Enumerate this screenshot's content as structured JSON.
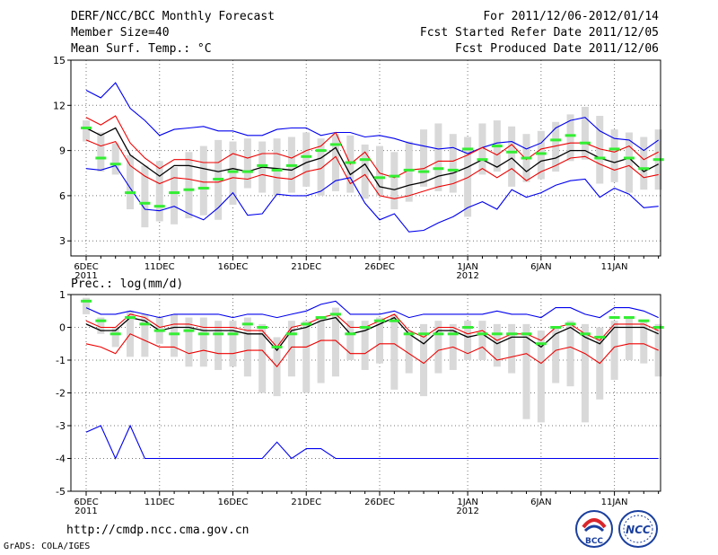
{
  "header": {
    "title": "DERF/NCC/BCC Monthly Forecast",
    "member_size": "Member Size=40",
    "variable": "Mean Surf. Temp.: °C",
    "period": "For 2011/12/06-2012/01/14",
    "started": "Fcst Started Refer Date 2011/12/05",
    "produced": "Fcst Produced Date 2011/12/06"
  },
  "footer": {
    "url": "http://cmdp.ncc.cma.gov.cn",
    "grads": "GrADS: COLA/IGES"
  },
  "logos": [
    {
      "name": "bcc-logo",
      "label": "BCC"
    },
    {
      "name": "ncc-logo",
      "label": "NCC"
    }
  ],
  "colors": {
    "envelope": "#0000ee",
    "spread": "#ee0000",
    "mean": "#000000",
    "member": "#33ee33",
    "box": "#d9d9d9",
    "grid": "#777777"
  },
  "chart_data": [
    {
      "type": "line",
      "title": "Mean Surf. Temp.: °C",
      "x_tick_labels": [
        "6DEC\n2011",
        "11DEC",
        "16DEC",
        "21DEC",
        "26DEC",
        "1JAN\n2012",
        "6JAN",
        "11JAN"
      ],
      "x_tick_days": [
        1,
        6,
        11,
        16,
        21,
        27,
        32,
        37
      ],
      "x": [
        1,
        2,
        3,
        4,
        5,
        6,
        7,
        8,
        9,
        10,
        11,
        12,
        13,
        14,
        15,
        16,
        17,
        18,
        19,
        20,
        21,
        22,
        23,
        24,
        25,
        26,
        27,
        28,
        29,
        30,
        31,
        32,
        33,
        34,
        35,
        36,
        37,
        38,
        39,
        40
      ],
      "ylim": [
        2,
        15
      ],
      "yticks": [
        3,
        6,
        9,
        12,
        15
      ],
      "series": [
        {
          "name": "max",
          "values": [
            13,
            12.5,
            13.5,
            11.8,
            11,
            10,
            10.4,
            10.5,
            10.6,
            10.3,
            10.3,
            10,
            10,
            10.4,
            10.5,
            10.5,
            10,
            10.2,
            10.2,
            9.9,
            10,
            9.8,
            9.5,
            9.3,
            9.1,
            9.2,
            8.8,
            9.2,
            9.5,
            9.6,
            9.1,
            9.5,
            10.5,
            11,
            11.2,
            10.3,
            9.8,
            9.7,
            9,
            9.7
          ]
        },
        {
          "name": "upper",
          "values": [
            11.2,
            10.7,
            11.3,
            9.5,
            8.5,
            7.8,
            8.4,
            8.4,
            8.2,
            8.2,
            8.8,
            8.5,
            8.8,
            8.8,
            8.5,
            9,
            9.3,
            10.2,
            8.1,
            8.9,
            7.5,
            7.2,
            7.7,
            7.8,
            8.3,
            8.3,
            8.7,
            9.2,
            8.7,
            9.4,
            8.4,
            9.1,
            9.3,
            9.5,
            9.5,
            9.1,
            8.9,
            9.3,
            8.4,
            8.9
          ]
        },
        {
          "name": "mean",
          "values": [
            10.5,
            10,
            10.5,
            8.7,
            8,
            7.3,
            8,
            8,
            7.8,
            7.6,
            7.8,
            7.6,
            7.9,
            7.8,
            7.7,
            8.2,
            8.5,
            9.2,
            7.4,
            8.1,
            6.6,
            6.4,
            6.7,
            6.9,
            7.3,
            7.5,
            7.9,
            8.4,
            7.9,
            8.5,
            7.6,
            8.3,
            8.5,
            9,
            9,
            8.5,
            8.2,
            8.5,
            7.6,
            8.1
          ]
        },
        {
          "name": "lower",
          "values": [
            9.7,
            9.3,
            9.6,
            8,
            7.3,
            6.8,
            7.2,
            7.1,
            6.9,
            6.9,
            7.2,
            7.1,
            7.4,
            7.2,
            7.1,
            7.6,
            7.8,
            8.6,
            6.8,
            7.4,
            6,
            5.8,
            6,
            6.3,
            6.6,
            6.8,
            7.2,
            7.8,
            7.2,
            7.8,
            7,
            7.6,
            8,
            8.5,
            8.6,
            8.1,
            7.7,
            8,
            7.2,
            7.4
          ]
        },
        {
          "name": "min",
          "values": [
            7.8,
            7.7,
            8,
            6.5,
            5.1,
            5,
            5.3,
            4.8,
            4.4,
            5.2,
            6.2,
            4.7,
            4.8,
            6.1,
            6,
            6,
            6.3,
            7,
            7.2,
            5.5,
            4.4,
            4.8,
            3.6,
            3.7,
            4.2,
            4.6,
            5.2,
            5.6,
            5.1,
            6.4,
            5.9,
            6.2,
            6.7,
            7,
            7.1,
            5.9,
            6.5,
            6.1,
            5.2,
            5.3
          ]
        }
      ],
      "box_ranges": [
        [
          9.6,
          11
        ],
        [
          7.6,
          10.2
        ],
        [
          7.4,
          9.5
        ],
        [
          5.1,
          8.7
        ],
        [
          3.9,
          8
        ],
        [
          4.3,
          8.3
        ],
        [
          4.1,
          7.9
        ],
        [
          4.5,
          8.9
        ],
        [
          4.7,
          9.3
        ],
        [
          4.4,
          9.7
        ],
        [
          5.4,
          9.6
        ],
        [
          6.5,
          9.8
        ],
        [
          6.2,
          9.6
        ],
        [
          6,
          9.8
        ],
        [
          6.2,
          9.9
        ],
        [
          6.6,
          10.2
        ],
        [
          6,
          9.8
        ],
        [
          6.3,
          10.1
        ],
        [
          6.2,
          10
        ],
        [
          5.8,
          9.4
        ],
        [
          6,
          9.3
        ],
        [
          5.1,
          8.9
        ],
        [
          5.6,
          9.6
        ],
        [
          6.6,
          10.4
        ],
        [
          6.3,
          10.8
        ],
        [
          6.2,
          10.1
        ],
        [
          4.6,
          9.9
        ],
        [
          7.4,
          10.8
        ],
        [
          7.6,
          11
        ],
        [
          6.6,
          10.6
        ],
        [
          6.9,
          10.1
        ],
        [
          7.1,
          10.3
        ],
        [
          7.6,
          10.9
        ],
        [
          8.3,
          11.4
        ],
        [
          8.4,
          11.9
        ],
        [
          6.8,
          11.3
        ],
        [
          6.9,
          10.4
        ],
        [
          6.2,
          10.2
        ],
        [
          6.4,
          9.9
        ],
        [
          6.4,
          10.4
        ]
      ],
      "member_markers": [
        10.5,
        8.5,
        8.1,
        6.2,
        5.5,
        5.3,
        6.2,
        6.4,
        6.5,
        7.1,
        7.6,
        7.6,
        8,
        7.7,
        8,
        8.6,
        9,
        9.4,
        8.2,
        8.4,
        7.2,
        7.3,
        7.7,
        7.6,
        7.8,
        7.7,
        9.1,
        8.4,
        9.3,
        8.9,
        8.5,
        8.8,
        9.7,
        10,
        9.5,
        8.5,
        9.1,
        8.5,
        7.8,
        8.4
      ]
    },
    {
      "type": "line",
      "title": "Prec.: log(mm/d)",
      "x_tick_labels": [
        "6DEC\n2011",
        "11DEC",
        "16DEC",
        "21DEC",
        "26DEC",
        "1JAN\n2012",
        "6JAN",
        "11JAN"
      ],
      "x_tick_days": [
        1,
        6,
        11,
        16,
        21,
        27,
        32,
        37
      ],
      "x": [
        1,
        2,
        3,
        4,
        5,
        6,
        7,
        8,
        9,
        10,
        11,
        12,
        13,
        14,
        15,
        16,
        17,
        18,
        19,
        20,
        21,
        22,
        23,
        24,
        25,
        26,
        27,
        28,
        29,
        30,
        31,
        32,
        33,
        34,
        35,
        36,
        37,
        38,
        39,
        40
      ],
      "ylim": [
        -5,
        1
      ],
      "yticks": [
        -5,
        -4,
        -3,
        -2,
        -1,
        0,
        1
      ],
      "series": [
        {
          "name": "max",
          "values": [
            0.6,
            0.4,
            0.4,
            0.5,
            0.4,
            0.3,
            0.4,
            0.4,
            0.4,
            0.4,
            0.3,
            0.4,
            0.4,
            0.3,
            0.4,
            0.5,
            0.7,
            0.8,
            0.4,
            0.4,
            0.4,
            0.5,
            0.3,
            0.4,
            0.4,
            0.4,
            0.4,
            0.4,
            0.5,
            0.4,
            0.4,
            0.3,
            0.6,
            0.6,
            0.4,
            0.3,
            0.6,
            0.6,
            0.5,
            0.3
          ]
        },
        {
          "name": "upper",
          "values": [
            0.2,
            0,
            0,
            0.4,
            0.3,
            0,
            0.1,
            0.1,
            0,
            0,
            0,
            -0.1,
            -0.1,
            -0.6,
            0,
            0.1,
            0.3,
            0.4,
            0,
            0,
            0.2,
            0.4,
            -0.1,
            -0.3,
            0,
            0,
            -0.2,
            -0.1,
            -0.4,
            -0.2,
            -0.2,
            -0.4,
            0,
            0.1,
            -0.2,
            -0.4,
            0.1,
            0.1,
            0.1,
            -0.1
          ]
        },
        {
          "name": "mean",
          "values": [
            0.1,
            -0.1,
            -0.1,
            0.3,
            0.2,
            -0.1,
            0,
            0,
            -0.1,
            -0.1,
            -0.1,
            -0.2,
            -0.2,
            -0.7,
            -0.1,
            0,
            0.2,
            0.3,
            -0.2,
            -0.1,
            0.1,
            0.3,
            -0.2,
            -0.5,
            -0.1,
            -0.1,
            -0.3,
            -0.2,
            -0.5,
            -0.3,
            -0.3,
            -0.6,
            -0.2,
            0,
            -0.3,
            -0.5,
            0,
            0,
            0,
            -0.2
          ]
        },
        {
          "name": "lower",
          "values": [
            -0.5,
            -0.6,
            -0.8,
            -0.2,
            -0.4,
            -0.6,
            -0.6,
            -0.8,
            -0.7,
            -0.8,
            -0.8,
            -0.7,
            -0.7,
            -1.2,
            -0.6,
            -0.6,
            -0.4,
            -0.4,
            -0.8,
            -0.8,
            -0.5,
            -0.5,
            -0.8,
            -1.1,
            -0.7,
            -0.6,
            -0.8,
            -0.6,
            -1,
            -0.9,
            -0.8,
            -1.1,
            -0.7,
            -0.6,
            -0.8,
            -1.1,
            -0.6,
            -0.5,
            -0.5,
            -0.7
          ]
        },
        {
          "name": "min",
          "values": [
            -3.2,
            -3,
            -4,
            -3,
            -4,
            -4,
            -4,
            -4,
            -4,
            -4,
            -4,
            -4,
            -4,
            -3.5,
            -4,
            -3.7,
            -3.7,
            -4,
            -4,
            -4,
            -4,
            -4,
            -4,
            -4,
            -4,
            -4,
            -4,
            -4,
            -4,
            -4,
            -4,
            -4,
            -4,
            -4,
            -4,
            -4,
            -4,
            -4,
            -4,
            -4
          ]
        }
      ],
      "box_ranges": [
        [
          0.4,
          0.9
        ],
        [
          -0.2,
          0.3
        ],
        [
          -0.6,
          0
        ],
        [
          -0.9,
          0.5
        ],
        [
          -0.9,
          0.4
        ],
        [
          -0.5,
          0.3
        ],
        [
          -0.9,
          0.4
        ],
        [
          -1.2,
          0.3
        ],
        [
          -1.2,
          0.3
        ],
        [
          -1.3,
          0.2
        ],
        [
          -1.2,
          0.2
        ],
        [
          -1.5,
          0.3
        ],
        [
          -2,
          0.1
        ],
        [
          -2.1,
          -0.3
        ],
        [
          -1.5,
          0.2
        ],
        [
          -2,
          0.2
        ],
        [
          -1.7,
          0.3
        ],
        [
          -1.5,
          0.6
        ],
        [
          -1,
          0.2
        ],
        [
          -1.3,
          0.2
        ],
        [
          -1.1,
          0.3
        ],
        [
          -1.9,
          0.4
        ],
        [
          -1.4,
          -0.1
        ],
        [
          -2.1,
          0.1
        ],
        [
          -1.4,
          0.2
        ],
        [
          -1.3,
          0.1
        ],
        [
          -1,
          0.2
        ],
        [
          -1,
          0.2
        ],
        [
          -1.2,
          0.1
        ],
        [
          -1.4,
          0.1
        ],
        [
          -2.8,
          0.1
        ],
        [
          -2.9,
          -0.1
        ],
        [
          -1.7,
          0
        ],
        [
          -1.8,
          0.2
        ],
        [
          -2.9,
          0.1
        ],
        [
          -2.2,
          0
        ],
        [
          -1.6,
          0.2
        ],
        [
          -1,
          0.3
        ],
        [
          -1.1,
          0.2
        ],
        [
          -1.5,
          0.1
        ]
      ],
      "member_markers": [
        0.8,
        0.2,
        -0.2,
        0.3,
        0.1,
        -0.1,
        -0.2,
        -0.1,
        -0.2,
        -0.2,
        -0.2,
        0.1,
        0,
        -0.6,
        -0.2,
        0.1,
        0.3,
        0.4,
        -0.2,
        0,
        0.2,
        0.2,
        -0.2,
        -0.2,
        -0.2,
        -0.2,
        0,
        -0.2,
        -0.2,
        -0.2,
        -0.2,
        -0.5,
        0,
        0.1,
        -0.2,
        -0.3,
        0.3,
        0.3,
        0.2,
        0
      ]
    }
  ]
}
